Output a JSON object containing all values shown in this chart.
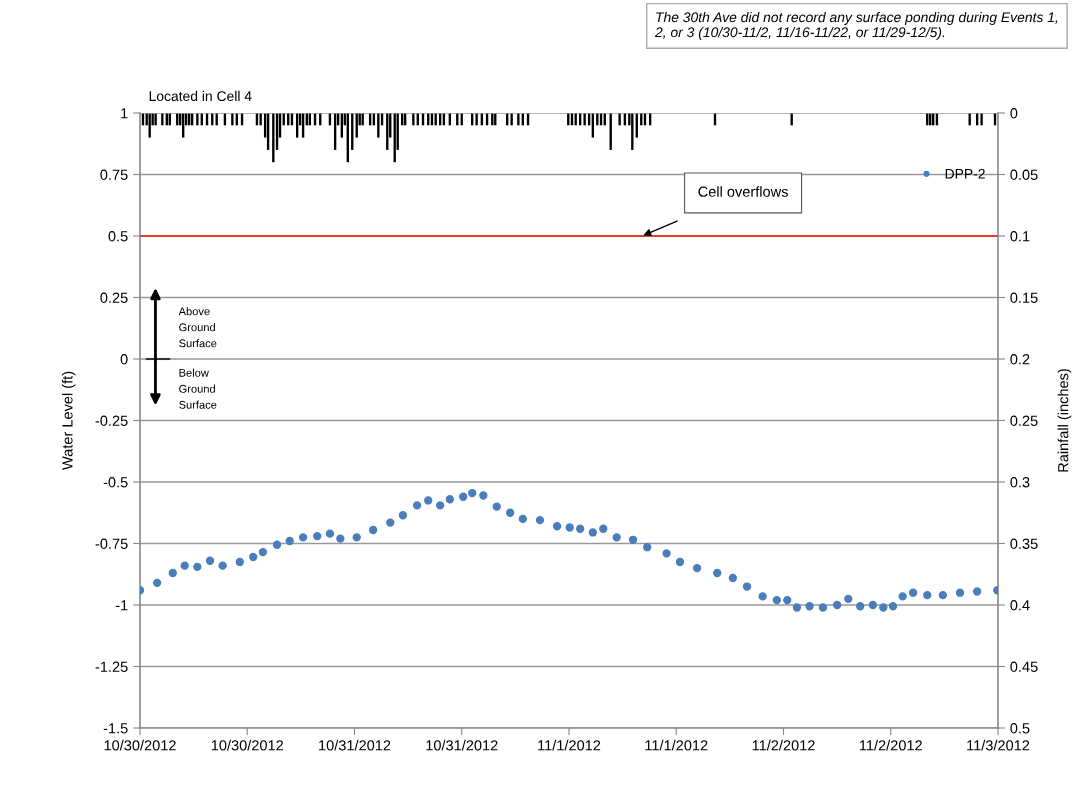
{
  "chart_data": {
    "type": "scatter",
    "xlabel": null,
    "ylabel": "Water Level (ft)",
    "y2label": "Rainfall (inches)",
    "annotations": [
      "Located in Cell 4",
      "The 30th Ave did not record any surface ponding during Events 1, 2, or 3 (10/30-11/2, 11/16-11/22, or 11/29-12/5).",
      "Cell overflows",
      "Above\nGround\nSurface",
      "Below\nGround\nSurface"
    ],
    "xlim": [
      "2012-10-30T00:00",
      "2012-11-03T00:00"
    ],
    "xticks": [
      {
        "value": "2012-10-30T00:00",
        "label": "10/30/2012"
      },
      {
        "value": "2012-10-30T12:00",
        "label": "10/30/2012"
      },
      {
        "value": "2012-10-31T00:00",
        "label": "10/31/2012"
      },
      {
        "value": "2012-10-31T12:00",
        "label": "10/31/2012"
      },
      {
        "value": "2012-11-01T00:00",
        "label": "11/1/2012"
      },
      {
        "value": "2012-11-01T12:00",
        "label": "11/1/2012"
      },
      {
        "value": "2012-11-02T00:00",
        "label": "11/2/2012"
      },
      {
        "value": "2012-11-02T12:00",
        "label": "11/2/2012"
      },
      {
        "value": "2012-11-03T00:00",
        "label": "11/3/2012"
      }
    ],
    "ylim": [
      -1.5,
      1
    ],
    "yticks": [
      -1.5,
      -1.25,
      -1,
      -0.75,
      -0.5,
      -0.25,
      0,
      0.25,
      0.5,
      0.75,
      1
    ],
    "y2lim": [
      0.5,
      0
    ],
    "y2ticks": [
      0,
      0.05,
      0.1,
      0.15,
      0.2,
      0.25,
      0.3,
      0.35,
      0.4,
      0.45,
      0.5
    ],
    "grid": "y",
    "legend": "top right",
    "marker": "circle",
    "ref_lines": [
      {
        "axis": "y",
        "value": 0.5,
        "color": "#e03c31",
        "line_style": "solid"
      }
    ],
    "series": [
      {
        "name": "DPP-2",
        "color": "#4a7ebb",
        "x": [
          "2012-10-30T00:00",
          "2012-10-30T01:55",
          "2012-10-30T03:40",
          "2012-10-30T05:00",
          "2012-10-30T06:25",
          "2012-10-30T07:50",
          "2012-10-30T09:15",
          "2012-10-30T11:10",
          "2012-10-30T12:40",
          "2012-10-30T13:45",
          "2012-10-30T15:20",
          "2012-10-30T16:45",
          "2012-10-30T18:15",
          "2012-10-30T19:50",
          "2012-10-30T21:15",
          "2012-10-30T22:25",
          "2012-10-31T00:15",
          "2012-10-31T02:05",
          "2012-10-31T04:00",
          "2012-10-31T05:25",
          "2012-10-31T07:00",
          "2012-10-31T08:15",
          "2012-10-31T09:35",
          "2012-10-31T10:40",
          "2012-10-31T12:10",
          "2012-10-31T13:10",
          "2012-10-31T14:25",
          "2012-10-31T15:55",
          "2012-10-31T17:25",
          "2012-10-31T18:50",
          "2012-10-31T20:45",
          "2012-10-31T22:40",
          "2012-11-01T00:05",
          "2012-11-01T01:15",
          "2012-11-01T02:40",
          "2012-11-01T03:50",
          "2012-11-01T05:20",
          "2012-11-01T07:10",
          "2012-11-01T08:45",
          "2012-11-01T10:55",
          "2012-11-01T12:25",
          "2012-11-01T14:20",
          "2012-11-01T16:35",
          "2012-11-01T18:20",
          "2012-11-01T19:55",
          "2012-11-01T21:40",
          "2012-11-01T23:15",
          "2012-11-02T00:25",
          "2012-11-02T01:30",
          "2012-11-02T02:55",
          "2012-11-02T04:25",
          "2012-11-02T06:00",
          "2012-11-02T07:15",
          "2012-11-02T08:35",
          "2012-11-02T10:00",
          "2012-11-02T11:10",
          "2012-11-02T12:15",
          "2012-11-02T13:20",
          "2012-11-02T14:30",
          "2012-11-02T16:05",
          "2012-11-02T17:50",
          "2012-11-02T19:45",
          "2012-11-02T21:40",
          "2012-11-02T23:55"
        ],
        "values": [
          -0.94,
          -0.91,
          -0.87,
          -0.84,
          -0.845,
          -0.82,
          -0.84,
          -0.825,
          -0.805,
          -0.785,
          -0.755,
          -0.74,
          -0.725,
          -0.72,
          -0.71,
          -0.73,
          -0.725,
          -0.695,
          -0.665,
          -0.635,
          -0.595,
          -0.575,
          -0.595,
          -0.57,
          -0.56,
          -0.545,
          -0.555,
          -0.6,
          -0.625,
          -0.65,
          -0.655,
          -0.68,
          -0.685,
          -0.69,
          -0.705,
          -0.69,
          -0.725,
          -0.735,
          -0.765,
          -0.79,
          -0.825,
          -0.85,
          -0.87,
          -0.89,
          -0.925,
          -0.965,
          -0.98,
          -0.98,
          -1.01,
          -1.005,
          -1.01,
          -1.0,
          -0.975,
          -1.005,
          -1.0,
          -1.01,
          -1.005,
          -0.965,
          -0.95,
          -0.96,
          -0.96,
          -0.95,
          -0.945,
          -0.94
        ]
      },
      {
        "type": "bar",
        "axis": "y2",
        "color": "#000000",
        "x": [
          "2012-10-30T00:20",
          "2012-10-30T00:45",
          "2012-10-30T01:05",
          "2012-10-30T01:25",
          "2012-10-30T01:45",
          "2012-10-30T02:30",
          "2012-10-30T03:00",
          "2012-10-30T03:20",
          "2012-10-30T04:10",
          "2012-10-30T04:30",
          "2012-10-30T04:50",
          "2012-10-30T05:10",
          "2012-10-30T05:30",
          "2012-10-30T05:50",
          "2012-10-30T06:25",
          "2012-10-30T06:55",
          "2012-10-30T07:30",
          "2012-10-30T08:05",
          "2012-10-30T08:35",
          "2012-10-30T09:30",
          "2012-10-30T10:20",
          "2012-10-30T10:50",
          "2012-10-30T11:25",
          "2012-10-30T13:05",
          "2012-10-30T13:30",
          "2012-10-30T14:00",
          "2012-10-30T14:20",
          "2012-10-30T14:55",
          "2012-10-30T15:20",
          "2012-10-30T15:40",
          "2012-10-30T16:05",
          "2012-10-30T16:35",
          "2012-10-30T17:00",
          "2012-10-30T17:35",
          "2012-10-30T17:55",
          "2012-10-30T18:15",
          "2012-10-30T18:40",
          "2012-10-30T19:00",
          "2012-10-30T19:35",
          "2012-10-30T20:10",
          "2012-10-30T21:15",
          "2012-10-30T21:50",
          "2012-10-30T22:10",
          "2012-10-30T22:35",
          "2012-10-30T22:55",
          "2012-10-30T23:15",
          "2012-10-30T23:45",
          "2012-10-31T00:15",
          "2012-10-31T00:35",
          "2012-10-31T00:55",
          "2012-10-31T01:45",
          "2012-10-31T02:10",
          "2012-10-31T02:40",
          "2012-10-31T03:05",
          "2012-10-31T03:40",
          "2012-10-31T04:00",
          "2012-10-31T04:30",
          "2012-10-31T04:50",
          "2012-10-31T05:20",
          "2012-10-31T05:40",
          "2012-10-31T06:35",
          "2012-10-31T07:05",
          "2012-10-31T07:40",
          "2012-10-31T08:15",
          "2012-10-31T08:40",
          "2012-10-31T09:05",
          "2012-10-31T09:35",
          "2012-10-31T10:00",
          "2012-10-31T10:40",
          "2012-10-31T11:30",
          "2012-10-31T12:00",
          "2012-10-31T13:10",
          "2012-10-31T13:40",
          "2012-10-31T14:15",
          "2012-10-31T14:50",
          "2012-10-31T15:25",
          "2012-10-31T15:45",
          "2012-10-31T17:05",
          "2012-10-31T17:35",
          "2012-10-31T18:20",
          "2012-10-31T18:50",
          "2012-10-31T19:25",
          "2012-10-31T23:55",
          "2012-11-01T00:20",
          "2012-11-01T00:45",
          "2012-11-01T01:15",
          "2012-11-01T01:45",
          "2012-11-01T02:15",
          "2012-11-01T02:40",
          "2012-11-01T03:10",
          "2012-11-01T03:35",
          "2012-11-01T04:00",
          "2012-11-01T04:40",
          "2012-11-01T05:40",
          "2012-11-01T06:15",
          "2012-11-01T06:45",
          "2012-11-01T07:05",
          "2012-11-01T07:35",
          "2012-11-01T08:05",
          "2012-11-01T08:30",
          "2012-11-01T09:05",
          "2012-11-01T16:20",
          "2012-11-02T00:55",
          "2012-11-02T16:05",
          "2012-11-02T16:25",
          "2012-11-02T16:45",
          "2012-11-02T17:10",
          "2012-11-02T20:50",
          "2012-11-02T21:40",
          "2012-11-02T22:10",
          "2012-11-02T23:40"
        ],
        "values": [
          0.01,
          0.01,
          0.02,
          0.01,
          0.01,
          0.01,
          0.01,
          0.01,
          0.01,
          0.01,
          0.02,
          0.01,
          0.01,
          0.01,
          0.01,
          0.01,
          0.01,
          0.01,
          0.01,
          0.01,
          0.01,
          0.01,
          0.01,
          0.01,
          0.01,
          0.02,
          0.03,
          0.04,
          0.03,
          0.02,
          0.01,
          0.01,
          0.01,
          0.02,
          0.01,
          0.02,
          0.01,
          0.01,
          0.01,
          0.01,
          0.01,
          0.03,
          0.01,
          0.02,
          0.01,
          0.04,
          0.03,
          0.02,
          0.01,
          0.01,
          0.01,
          0.01,
          0.02,
          0.01,
          0.03,
          0.02,
          0.04,
          0.03,
          0.01,
          0.01,
          0.01,
          0.01,
          0.01,
          0.01,
          0.01,
          0.01,
          0.01,
          0.01,
          0.01,
          0.01,
          0.01,
          0.01,
          0.01,
          0.01,
          0.01,
          0.01,
          0.01,
          0.01,
          0.01,
          0.01,
          0.01,
          0.01,
          0.01,
          0.01,
          0.01,
          0.01,
          0.01,
          0.01,
          0.02,
          0.01,
          0.01,
          0.01,
          0.03,
          0.01,
          0.01,
          0.01,
          0.03,
          0.02,
          0.01,
          0.01,
          0.01,
          0.01,
          0.01,
          0.01,
          0.01,
          0.01,
          0.01,
          0.01,
          0.01,
          0.01,
          0.01
        ]
      }
    ]
  }
}
